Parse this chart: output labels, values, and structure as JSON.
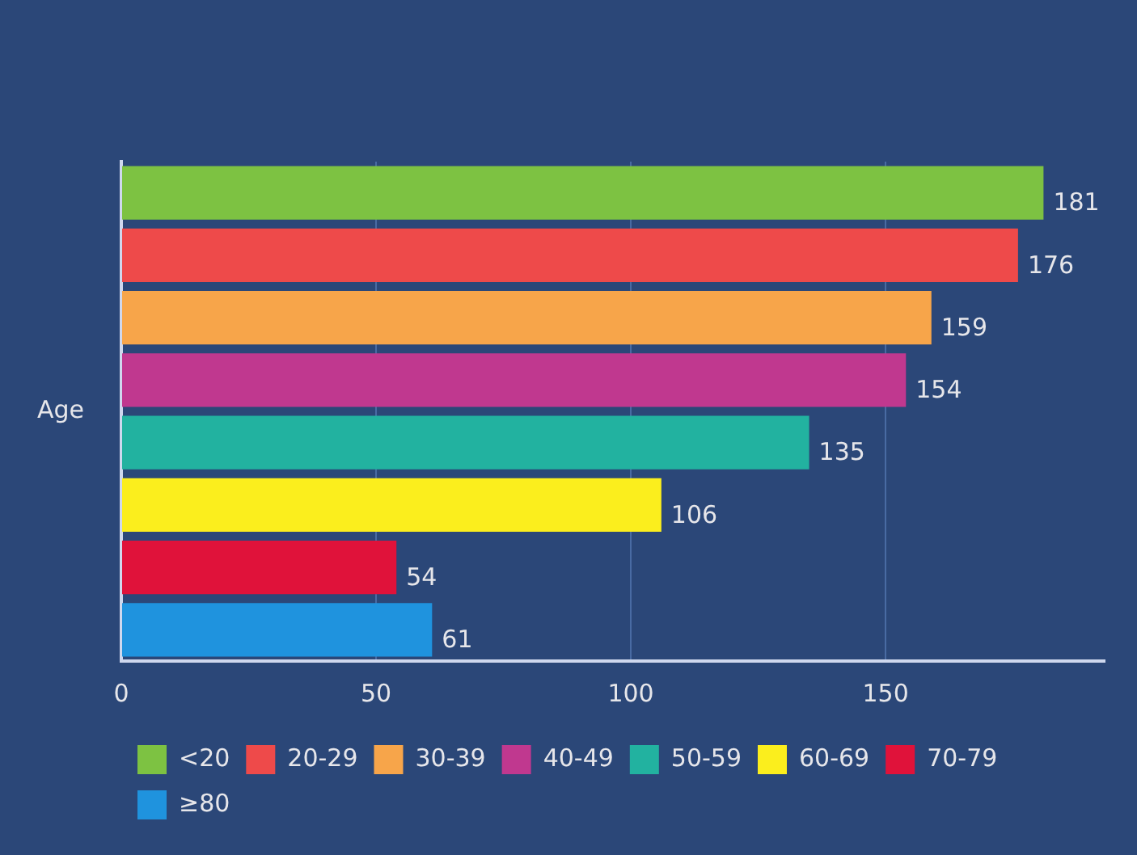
{
  "chart_data": {
    "type": "bar",
    "orientation": "horizontal",
    "ylabel": "Age",
    "categories": [
      null,
      null,
      null,
      null,
      null,
      null,
      null,
      null
    ],
    "series": [
      {
        "name": "<20",
        "color": "#7dc242",
        "values": [
          181,
          null,
          null,
          null,
          null,
          null,
          null,
          null
        ]
      },
      {
        "name": "20-29",
        "color": "#ee4a4a",
        "values": [
          null,
          176,
          null,
          null,
          null,
          null,
          null,
          null
        ]
      },
      {
        "name": "30-39",
        "color": "#f7a54a",
        "values": [
          null,
          null,
          159,
          null,
          null,
          null,
          null,
          null
        ]
      },
      {
        "name": "40-49",
        "color": "#c0388f",
        "values": [
          null,
          null,
          null,
          154,
          null,
          null,
          null,
          null
        ]
      },
      {
        "name": "50-59",
        "color": "#22b2a0",
        "values": [
          null,
          null,
          null,
          null,
          135,
          null,
          null,
          null
        ]
      },
      {
        "name": "60-69",
        "color": "#fbee1d",
        "values": [
          null,
          null,
          null,
          null,
          null,
          106,
          null,
          null
        ]
      },
      {
        "name": "70-79",
        "color": "#e0123a",
        "values": [
          null,
          null,
          null,
          null,
          null,
          null,
          54,
          null
        ]
      },
      {
        "name": "≥80",
        "color": "#1f93de",
        "values": [
          null,
          null,
          null,
          null,
          null,
          null,
          null,
          61
        ]
      }
    ],
    "xlim": [
      0,
      193
    ],
    "xticks": [
      0,
      50,
      100,
      150
    ],
    "grid": "x",
    "legend": "bottom",
    "tick_labels": "x",
    "data_labels": true
  }
}
